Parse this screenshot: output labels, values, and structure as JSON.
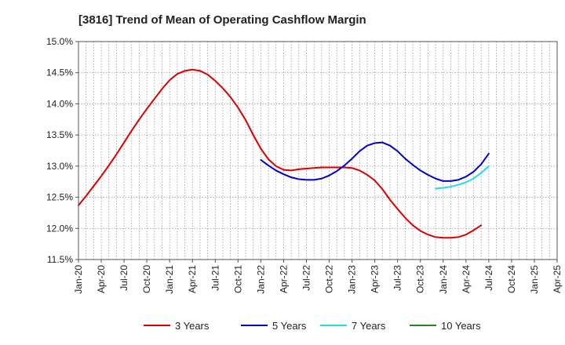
{
  "chart_data": {
    "type": "line",
    "title": "[3816]  Trend of Mean of Operating Cashflow Margin",
    "xlabel": "",
    "ylabel": "",
    "y_ticks": [
      "11.5%",
      "12.0%",
      "12.5%",
      "13.0%",
      "13.5%",
      "14.0%",
      "14.5%",
      "15.0%"
    ],
    "ylim": [
      11.5,
      15.0
    ],
    "x_ticks": [
      "Jan-20",
      "Apr-20",
      "Jul-20",
      "Oct-20",
      "Jan-21",
      "Apr-21",
      "Jul-21",
      "Oct-21",
      "Jan-22",
      "Apr-22",
      "Jul-22",
      "Oct-22",
      "Jan-23",
      "Apr-23",
      "Jul-23",
      "Oct-23",
      "Jan-24",
      "Apr-24",
      "Jul-24",
      "Oct-24",
      "Jan-25",
      "Apr-25"
    ],
    "grid": true,
    "legend_position": "bottom",
    "series": [
      {
        "name": "3 Years",
        "color": "#dd0000",
        "points": [
          [
            "Jan-20",
            12.37
          ],
          [
            "Feb-20",
            12.52
          ],
          [
            "Mar-20",
            12.68
          ],
          [
            "Apr-20",
            12.84
          ],
          [
            "May-20",
            13.01
          ],
          [
            "Jun-20",
            13.19
          ],
          [
            "Jul-20",
            13.38
          ],
          [
            "Aug-20",
            13.57
          ],
          [
            "Sep-20",
            13.75
          ],
          [
            "Oct-20",
            13.92
          ],
          [
            "Nov-20",
            14.08
          ],
          [
            "Dec-20",
            14.24
          ],
          [
            "Jan-21",
            14.38
          ],
          [
            "Feb-21",
            14.48
          ],
          [
            "Mar-21",
            14.53
          ],
          [
            "Apr-21",
            14.55
          ],
          [
            "May-21",
            14.53
          ],
          [
            "Jun-21",
            14.47
          ],
          [
            "Jul-21",
            14.37
          ],
          [
            "Aug-21",
            14.25
          ],
          [
            "Sep-21",
            14.11
          ],
          [
            "Oct-21",
            13.94
          ],
          [
            "Nov-21",
            13.74
          ],
          [
            "Dec-21",
            13.5
          ],
          [
            "Jan-22",
            13.28
          ],
          [
            "Feb-22",
            13.11
          ],
          [
            "Mar-22",
            13.0
          ],
          [
            "Apr-22",
            12.94
          ],
          [
            "May-22",
            12.93
          ],
          [
            "Jun-22",
            12.95
          ],
          [
            "Jul-22",
            12.96
          ],
          [
            "Aug-22",
            12.97
          ],
          [
            "Sep-22",
            12.98
          ],
          [
            "Oct-22",
            12.98
          ],
          [
            "Nov-22",
            12.98
          ],
          [
            "Dec-22",
            12.98
          ],
          [
            "Jan-23",
            12.97
          ],
          [
            "Feb-23",
            12.93
          ],
          [
            "Mar-23",
            12.86
          ],
          [
            "Apr-23",
            12.77
          ],
          [
            "May-23",
            12.63
          ],
          [
            "Jun-23",
            12.46
          ],
          [
            "Jul-23",
            12.31
          ],
          [
            "Aug-23",
            12.17
          ],
          [
            "Sep-23",
            12.05
          ],
          [
            "Oct-23",
            11.96
          ],
          [
            "Nov-23",
            11.9
          ],
          [
            "Dec-23",
            11.86
          ],
          [
            "Jan-24",
            11.85
          ],
          [
            "Feb-24",
            11.85
          ],
          [
            "Mar-24",
            11.86
          ],
          [
            "Apr-24",
            11.9
          ],
          [
            "May-24",
            11.97
          ],
          [
            "Jun-24",
            12.05
          ]
        ]
      },
      {
        "name": "5 Years",
        "color": "#0000cc",
        "points": [
          [
            "Jan-22",
            13.1
          ],
          [
            "Feb-22",
            13.01
          ],
          [
            "Mar-22",
            12.93
          ],
          [
            "Apr-22",
            12.87
          ],
          [
            "May-22",
            12.82
          ],
          [
            "Jun-22",
            12.79
          ],
          [
            "Jul-22",
            12.78
          ],
          [
            "Aug-22",
            12.78
          ],
          [
            "Sep-22",
            12.8
          ],
          [
            "Oct-22",
            12.85
          ],
          [
            "Nov-22",
            12.92
          ],
          [
            "Dec-22",
            13.01
          ],
          [
            "Jan-23",
            13.12
          ],
          [
            "Feb-23",
            13.24
          ],
          [
            "Mar-23",
            13.33
          ],
          [
            "Apr-23",
            13.37
          ],
          [
            "May-23",
            13.38
          ],
          [
            "Jun-23",
            13.33
          ],
          [
            "Jul-23",
            13.24
          ],
          [
            "Aug-23",
            13.12
          ],
          [
            "Sep-23",
            13.02
          ],
          [
            "Oct-23",
            12.93
          ],
          [
            "Nov-23",
            12.86
          ],
          [
            "Dec-23",
            12.8
          ],
          [
            "Jan-24",
            12.76
          ],
          [
            "Feb-24",
            12.76
          ],
          [
            "Mar-24",
            12.78
          ],
          [
            "Apr-24",
            12.83
          ],
          [
            "May-24",
            12.91
          ],
          [
            "Jun-24",
            13.03
          ],
          [
            "Jul-24",
            13.2
          ]
        ]
      },
      {
        "name": "7 Years",
        "color": "#22dddd",
        "points": [
          [
            "Dec-23",
            12.64
          ],
          [
            "Jan-24",
            12.65
          ],
          [
            "Feb-24",
            12.67
          ],
          [
            "Mar-24",
            12.7
          ],
          [
            "Apr-24",
            12.74
          ],
          [
            "May-24",
            12.8
          ],
          [
            "Jun-24",
            12.89
          ],
          [
            "Jul-24",
            13.0
          ]
        ]
      },
      {
        "name": "10 Years",
        "color": "#228822",
        "points": []
      }
    ]
  }
}
